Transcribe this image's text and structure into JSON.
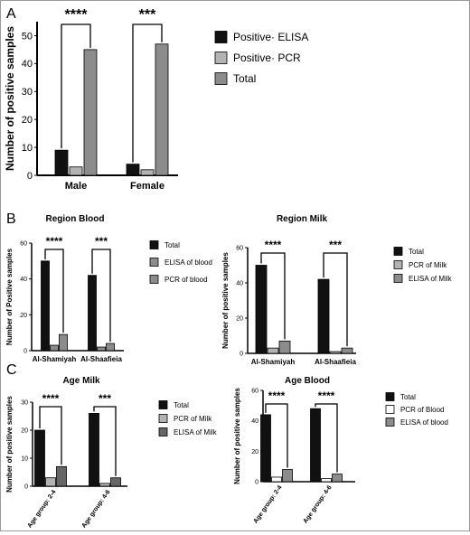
{
  "panel_labels": [
    "A",
    "B",
    "C"
  ],
  "chart_data": [
    {
      "id": "chartA",
      "type": "bar",
      "panel": "A",
      "title": "",
      "xlabel": "",
      "ylabel": "Number of positive samples",
      "categories": [
        "Male",
        "Female"
      ],
      "ylim": [
        0,
        55
      ],
      "yticks": [
        0,
        10,
        20,
        30,
        40,
        50
      ],
      "series": [
        {
          "name": "Positive· ELISA",
          "values": [
            9,
            4
          ],
          "color": "#111111"
        },
        {
          "name": "Positive· PCR",
          "values": [
            3,
            2
          ],
          "color": "#b3b3b3"
        },
        {
          "name": "Total",
          "values": [
            45,
            47
          ],
          "color": "#8c8c8c"
        }
      ],
      "significance": [
        "****",
        "***"
      ],
      "legend": "right"
    },
    {
      "id": "chartB1",
      "type": "bar",
      "panel": "B",
      "title": "Region Blood",
      "xlabel": "",
      "ylabel": "Number of Positive samples",
      "categories": [
        "Al-Shamiyah",
        "Al-Shaafieia"
      ],
      "ylim": [
        0,
        60
      ],
      "yticks": [
        0,
        20,
        40,
        60
      ],
      "series": [
        {
          "name": "Total",
          "values": [
            50,
            42
          ],
          "color": "#111111"
        },
        {
          "name": "ELISA of blood",
          "values": [
            3,
            2
          ],
          "color": "#8c8c8c"
        },
        {
          "name": "PCR of blood",
          "values": [
            9,
            4
          ],
          "color": "#8c8c8c"
        }
      ],
      "significance": [
        "****",
        "***"
      ],
      "legend": "right"
    },
    {
      "id": "chartB2",
      "type": "bar",
      "panel": "B",
      "title": "Region Milk",
      "xlabel": "",
      "ylabel": "Number of positive samples",
      "categories": [
        "Al-Shamiyah",
        "Al-Shaafieia"
      ],
      "ylim": [
        0,
        60
      ],
      "yticks": [
        0,
        20,
        40,
        60
      ],
      "series": [
        {
          "name": "Total",
          "values": [
            50,
            42
          ],
          "color": "#111111"
        },
        {
          "name": "PCR of Milk",
          "values": [
            3,
            1
          ],
          "color": "#b3b3b3"
        },
        {
          "name": "ELISA of Milk",
          "values": [
            7,
            3
          ],
          "color": "#8c8c8c"
        }
      ],
      "significance": [
        "****",
        "***"
      ],
      "legend": "right"
    },
    {
      "id": "chartC1",
      "type": "bar",
      "panel": "C",
      "title": "Age Milk",
      "xlabel": "",
      "ylabel": "Number of positive samples",
      "categories": [
        "Age group: 2-4",
        "Age group: 4-6"
      ],
      "ylim": [
        0,
        30
      ],
      "yticks": [
        0,
        10,
        20,
        30
      ],
      "series": [
        {
          "name": "Total",
          "values": [
            20,
            26
          ],
          "color": "#111111"
        },
        {
          "name": "PCR of Milk",
          "values": [
            3,
            1
          ],
          "color": "#b3b3b3"
        },
        {
          "name": "ELISA of Milk",
          "values": [
            7,
            3
          ],
          "color": "#666666"
        }
      ],
      "significance": [
        "****",
        "***"
      ],
      "legend": "right"
    },
    {
      "id": "chartC2",
      "type": "bar",
      "panel": "C",
      "title": "Age Blood",
      "xlabel": "",
      "ylabel": "Number of positive samples",
      "categories": [
        "Age group: 2-4",
        "Age group: 4-6"
      ],
      "ylim": [
        0,
        60
      ],
      "yticks": [
        0,
        20,
        40,
        60
      ],
      "series": [
        {
          "name": "Total",
          "values": [
            44,
            48
          ],
          "color": "#111111"
        },
        {
          "name": "PCR of Blood",
          "values": [
            3,
            2
          ],
          "color": "#ffffff"
        },
        {
          "name": "ELISA of blood",
          "values": [
            8,
            5
          ],
          "color": "#8c8c8c"
        }
      ],
      "significance": [
        "****",
        "****"
      ],
      "legend": "right"
    }
  ]
}
